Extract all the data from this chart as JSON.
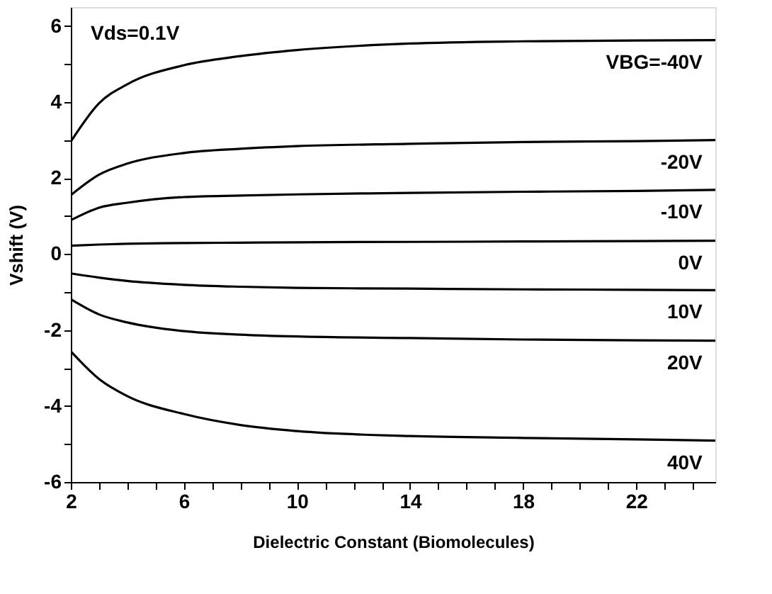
{
  "chart_data": {
    "type": "line",
    "xlabel": "Dielectric Constant (Biomolecules)",
    "ylabel": "Vshift (V)",
    "annotations": [
      "Vds=0.1V"
    ],
    "x": [
      2,
      3,
      4,
      6,
      8,
      10,
      14,
      18,
      22,
      24.8
    ],
    "series": [
      {
        "name": "VBG=-40V",
        "color": "#000000",
        "values": [
          2.96,
          3.97,
          4.47,
          4.97,
          5.21,
          5.37,
          5.54,
          5.6,
          5.62,
          5.63
        ]
      },
      {
        "name": "-20V",
        "color": "#000000",
        "values": [
          1.55,
          2.09,
          2.38,
          2.66,
          2.77,
          2.84,
          2.9,
          2.95,
          2.97,
          3.0
        ]
      },
      {
        "name": "-10V",
        "color": "#000000",
        "values": [
          0.89,
          1.22,
          1.35,
          1.5,
          1.54,
          1.57,
          1.61,
          1.64,
          1.66,
          1.69
        ]
      },
      {
        "name": "0V",
        "color": "#000000",
        "values": [
          0.22,
          0.25,
          0.27,
          0.29,
          0.3,
          0.31,
          0.32,
          0.33,
          0.34,
          0.35
        ]
      },
      {
        "name": "10V",
        "color": "#000000",
        "values": [
          -0.51,
          -0.62,
          -0.71,
          -0.81,
          -0.86,
          -0.89,
          -0.91,
          -0.93,
          -0.94,
          -0.95
        ]
      },
      {
        "name": "20V",
        "color": "#000000",
        "values": [
          -1.19,
          -1.59,
          -1.8,
          -2.03,
          -2.12,
          -2.17,
          -2.21,
          -2.25,
          -2.27,
          -2.28
        ]
      },
      {
        "name": "40V",
        "color": "#000000",
        "values": [
          -2.56,
          -3.29,
          -3.74,
          -4.21,
          -4.5,
          -4.66,
          -4.79,
          -4.84,
          -4.88,
          -4.91
        ]
      }
    ],
    "xlim": [
      2,
      24.8
    ],
    "ylim": [
      -6,
      6.5
    ],
    "xticks": [
      2,
      {
        "value": 3,
        "label": null
      },
      {
        "value": 4,
        "label": null
      },
      {
        "value": 5,
        "label": null
      },
      6,
      {
        "value": 7,
        "label": null
      },
      {
        "value": 8,
        "label": null
      },
      {
        "value": 9,
        "label": null
      },
      10,
      {
        "value": 11,
        "label": null
      },
      {
        "value": 12,
        "label": null
      },
      {
        "value": 13,
        "label": null
      },
      14,
      {
        "value": 15,
        "label": null
      },
      {
        "value": 16,
        "label": null
      },
      {
        "value": 17,
        "label": null
      },
      18,
      {
        "value": 19,
        "label": null
      },
      {
        "value": 20,
        "label": null
      },
      {
        "value": 21,
        "label": null
      },
      22,
      {
        "value": 23,
        "label": null
      },
      {
        "value": 24,
        "label": null
      }
    ],
    "yticks": [
      -6,
      {
        "value": -5,
        "label": null
      },
      -4,
      {
        "value": -3,
        "label": null
      },
      -2,
      {
        "value": -1,
        "label": null
      },
      0,
      {
        "value": 1,
        "label": null
      },
      2,
      {
        "value": 3,
        "label": null
      },
      4,
      {
        "value": 5,
        "label": null
      },
      6
    ],
    "grid": false,
    "marker": "none",
    "line_style": "solid"
  }
}
